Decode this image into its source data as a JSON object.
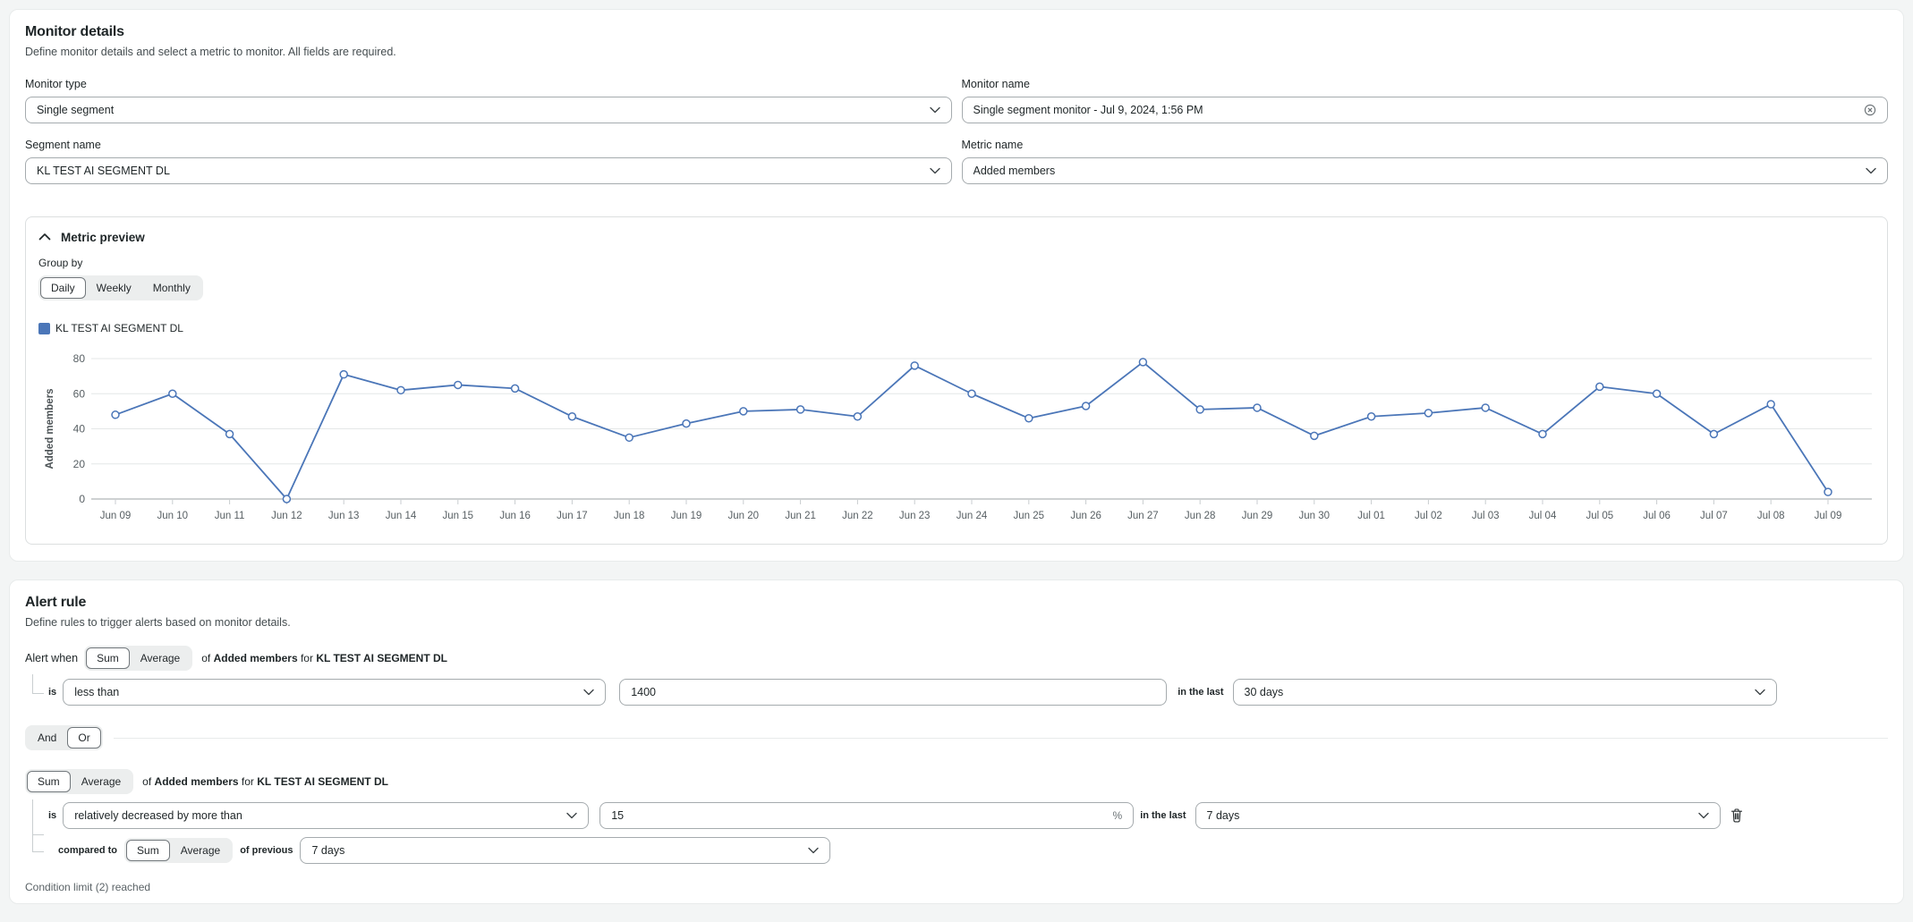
{
  "colors": {
    "accent_blue": "#4b76b8",
    "page_bg": "#f3f5f5"
  },
  "monitor_details": {
    "title": "Monitor details",
    "subtitle": "Define monitor details and select a metric to monitor. All fields are required.",
    "monitor_type": {
      "label": "Monitor type",
      "value": "Single segment"
    },
    "monitor_name": {
      "label": "Monitor name",
      "value": "Single segment monitor - Jul 9, 2024, 1:56 PM"
    },
    "segment_name": {
      "label": "Segment name",
      "value": "KL TEST AI SEGMENT DL"
    },
    "metric_name": {
      "label": "Metric name",
      "value": "Added members"
    }
  },
  "metric_preview": {
    "title": "Metric preview",
    "group_by_label": "Group by",
    "group_by_options": [
      "Daily",
      "Weekly",
      "Monthly"
    ],
    "group_by_selected": "Daily",
    "legend_label": "KL TEST AI SEGMENT DL"
  },
  "chart_data": {
    "type": "line",
    "title": "",
    "ylabel": "Added members",
    "x": [
      "Jun 09",
      "Jun 10",
      "Jun 11",
      "Jun 12",
      "Jun 13",
      "Jun 14",
      "Jun 15",
      "Jun 16",
      "Jun 17",
      "Jun 18",
      "Jun 19",
      "Jun 20",
      "Jun 21",
      "Jun 22",
      "Jun 23",
      "Jun 24",
      "Jun 25",
      "Jun 26",
      "Jun 27",
      "Jun 28",
      "Jun 29",
      "Jun 30",
      "Jul 01",
      "Jul 02",
      "Jul 03",
      "Jul 04",
      "Jul 05",
      "Jul 06",
      "Jul 07",
      "Jul 08",
      "Jul 09"
    ],
    "series": [
      {
        "name": "KL TEST AI SEGMENT DL",
        "values": [
          48,
          60,
          37,
          0,
          71,
          62,
          65,
          63,
          47,
          35,
          43,
          50,
          51,
          47,
          76,
          60,
          46,
          53,
          78,
          51,
          52,
          36,
          47,
          49,
          52,
          37,
          64,
          60,
          37,
          54,
          4
        ]
      }
    ],
    "yticks": [
      0,
      20,
      40,
      60,
      80
    ],
    "ylim": [
      0,
      85
    ],
    "grid": true,
    "legend_position": "top-left",
    "line_color": "#4b76b8"
  },
  "alert_rule": {
    "title": "Alert rule",
    "subtitle": "Define rules to trigger alerts based on monitor details.",
    "alert_when_label": "Alert when",
    "agg_options": [
      "Sum",
      "Average"
    ],
    "of_label": "of",
    "for_label": "for",
    "metric": "Added members",
    "segment": "KL TEST AI SEGMENT DL",
    "is_label": "is",
    "in_the_last_label": "in the last",
    "condition1": {
      "agg_selected": "Sum",
      "operator": "less than",
      "value": "1400",
      "window": "30 days"
    },
    "logic_options": [
      "And",
      "Or"
    ],
    "logic_selected": "Or",
    "condition2": {
      "agg_selected": "Sum",
      "operator": "relatively decreased by more than",
      "value": "15",
      "unit": "%",
      "window": "7 days",
      "compared_to_label": "compared to",
      "compared_agg_selected": "Sum",
      "of_previous_label": "of previous",
      "compared_window": "7 days"
    },
    "condition_limit_text": "Condition limit (2) reached"
  }
}
